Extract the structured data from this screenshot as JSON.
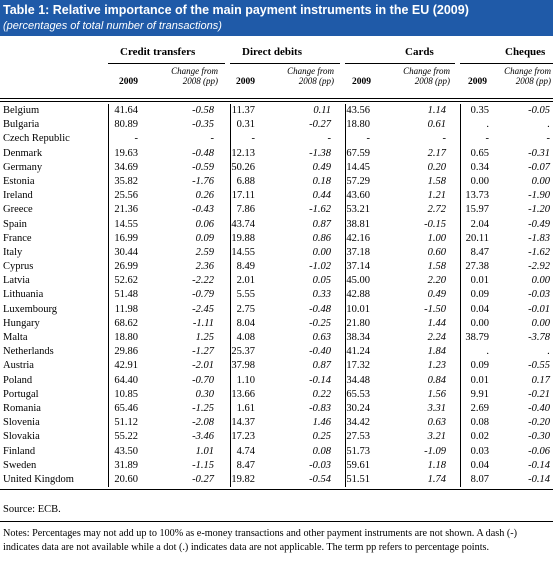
{
  "title": "Table 1:  Relative importance of the main payment instruments in the EU  (2009)",
  "subtitle": "(percentages of total number of transactions)",
  "groups": [
    {
      "label": "Credit transfers",
      "year": "2009",
      "change": [
        "Change from",
        "2008 (pp)"
      ]
    },
    {
      "label": "Direct debits",
      "year": "2009",
      "change": [
        "Change from",
        "2008 (pp)"
      ]
    },
    {
      "label": "Cards",
      "year": "2009",
      "change": [
        "Change from",
        "2008 (pp)"
      ]
    },
    {
      "label": "Cheques",
      "year": "2009",
      "change": [
        "Change from",
        "2008 (pp)"
      ]
    }
  ],
  "rows": [
    [
      "Belgium",
      "41.64",
      "-0.58",
      "11.37",
      "0.11",
      "43.56",
      "1.14",
      "0.35",
      "-0.05"
    ],
    [
      "Bulgaria",
      "80.89",
      "-0.35",
      "0.31",
      "-0.27",
      "18.80",
      "0.61",
      ".",
      "."
    ],
    [
      "Czech Republic",
      "-",
      "-",
      "-",
      "-",
      "-",
      "-",
      "-",
      "-"
    ],
    [
      "Denmark",
      "19.63",
      "-0.48",
      "12.13",
      "-1.38",
      "67.59",
      "2.17",
      "0.65",
      "-0.31"
    ],
    [
      "Germany",
      "34.69",
      "-0.59",
      "50.26",
      "0.49",
      "14.45",
      "0.20",
      "0.34",
      "-0.07"
    ],
    [
      "Estonia",
      "35.82",
      "-1.76",
      "6.88",
      "0.18",
      "57.29",
      "1.58",
      "0.00",
      "0.00"
    ],
    [
      "Ireland",
      "25.56",
      "0.26",
      "17.11",
      "0.44",
      "43.60",
      "1.21",
      "13.73",
      "-1.90"
    ],
    [
      "Greece",
      "21.36",
      "-0.43",
      "7.86",
      "-1.62",
      "53.21",
      "2.72",
      "15.97",
      "-1.20"
    ],
    [
      "Spain",
      "14.55",
      "0.06",
      "43.74",
      "0.87",
      "38.81",
      "-0.15",
      "2.04",
      "-0.49"
    ],
    [
      "France",
      "16.99",
      "0.09",
      "19.88",
      "0.86",
      "42.16",
      "1.00",
      "20.11",
      "-1.83"
    ],
    [
      "Italy",
      "30.44",
      "2.59",
      "14.55",
      "0.00",
      "37.18",
      "0.60",
      "8.47",
      "-1.62"
    ],
    [
      "Cyprus",
      "26.99",
      "2.36",
      "8.49",
      "-1.02",
      "37.14",
      "1.58",
      "27.38",
      "-2.92"
    ],
    [
      "Latvia",
      "52.62",
      "-2.22",
      "2.01",
      "0.05",
      "45.00",
      "2.20",
      "0.01",
      "0.00"
    ],
    [
      "Lithuania",
      "51.48",
      "-0.79",
      "5.55",
      "0.33",
      "42.88",
      "0.49",
      "0.09",
      "-0.03"
    ],
    [
      "Luxembourg",
      "11.98",
      "-2.45",
      "2.75",
      "-0.48",
      "10.01",
      "-1.50",
      "0.04",
      "-0.01"
    ],
    [
      "Hungary",
      "68.62",
      "-1.11",
      "8.04",
      "-0.25",
      "21.80",
      "1.44",
      "0.00",
      "0.00"
    ],
    [
      "Malta",
      "18.80",
      "1.25",
      "4.08",
      "0.63",
      "38.34",
      "2.24",
      "38.79",
      "-3.78"
    ],
    [
      "Netherlands",
      "29.86",
      "-1.27",
      "25.37",
      "-0.40",
      "41.24",
      "1.84",
      ".",
      "."
    ],
    [
      "Austria",
      "42.91",
      "-2.01",
      "37.98",
      "0.87",
      "17.32",
      "1.23",
      "0.09",
      "-0.55"
    ],
    [
      "Poland",
      "64.40",
      "-0.70",
      "1.10",
      "-0.14",
      "34.48",
      "0.84",
      "0.01",
      "0.17"
    ],
    [
      "Portugal",
      "10.85",
      "0.30",
      "13.66",
      "0.22",
      "65.53",
      "1.56",
      "9.91",
      "-0.21"
    ],
    [
      "Romania",
      "65.46",
      "-1.25",
      "1.61",
      "-0.83",
      "30.24",
      "3.31",
      "2.69",
      "-0.40"
    ],
    [
      "Slovenia",
      "51.12",
      "-2.08",
      "14.37",
      "1.46",
      "34.42",
      "0.63",
      "0.08",
      "-0.20"
    ],
    [
      "Slovakia",
      "55.22",
      "-3.46",
      "17.23",
      "0.25",
      "27.53",
      "3.21",
      "0.02",
      "-0.30"
    ],
    [
      "Finland",
      "43.50",
      "1.01",
      "4.74",
      "0.08",
      "51.73",
      "-1.09",
      "0.03",
      "-0.06"
    ],
    [
      "Sweden",
      "31.89",
      "-1.15",
      "8.47",
      "-0.03",
      "59.61",
      "1.18",
      "0.04",
      "-0.14"
    ],
    [
      "United Kingdom",
      "20.60",
      "-0.27",
      "19.82",
      "-0.54",
      "51.51",
      "1.74",
      "8.07",
      "-0.14"
    ]
  ],
  "source": "Source: ECB.",
  "notes": "Notes: Percentages may not add up to 100% as e-money transactions and other payment instruments are not shown.  A dash (-) indicates data are not available while a dot (.) indicates data are not applicable. The term pp refers to percentage points."
}
